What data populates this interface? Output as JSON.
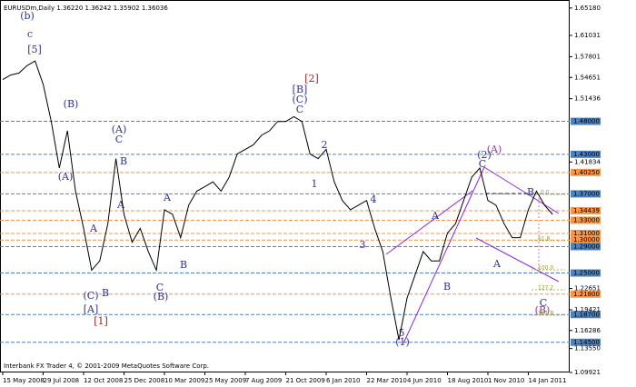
{
  "chart_data": {
    "type": "line",
    "title": "EURUSDm,Daily 1.36220 1.36242 1.35902 1.36036",
    "footer": "Interbank FX Trader 4, © 2001-2009 MetaQuotes Software Corp.",
    "categories": [
      "15 May 2008",
      null,
      null,
      null,
      null,
      "29 Jul 2008",
      null,
      null,
      null,
      null,
      "12 Oct 2008",
      null,
      null,
      null,
      null,
      "25 Dec 2008",
      null,
      null,
      null,
      null,
      "10 Mar 2009",
      null,
      null,
      null,
      null,
      "25 May 2009",
      null,
      null,
      null,
      null,
      "7 Aug 2009",
      null,
      null,
      null,
      null,
      "21 Oct 2009",
      null,
      null,
      null,
      null,
      "6 Jan 2010",
      null,
      null,
      null,
      null,
      "22 Mar 2010",
      null,
      null,
      null,
      null,
      "4 Jun 2010",
      null,
      null,
      null,
      null,
      "18 Aug 2010",
      null,
      null,
      null,
      null,
      "1 Nov 2010",
      null,
      null,
      null,
      null,
      "14 Jan 2011",
      null,
      null,
      null
    ],
    "values": [
      1.5433,
      1.5503,
      1.5531,
      1.5644,
      1.5715,
      1.5362,
      1.4798,
      1.4093,
      1.4657,
      1.3741,
      1.3177,
      1.2543,
      1.2684,
      1.3248,
      1.4234,
      1.3389,
      1.2966,
      1.3177,
      1.2825,
      1.2543,
      1.3459,
      1.3389,
      1.3036,
      1.353,
      1.3741,
      1.3811,
      1.3882,
      1.3741,
      1.3952,
      1.4305,
      1.4375,
      1.4446,
      1.4587,
      1.4657,
      1.4798,
      1.4798,
      1.4869,
      1.4798,
      1.4305,
      1.4234,
      1.4375,
      1.3882,
      1.36,
      1.3459,
      1.353,
      1.36,
      1.3177,
      1.2825,
      1.212,
      1.1486,
      1.212,
      1.2472,
      1.2825,
      1.2684,
      1.2684,
      1.3107,
      1.3248,
      1.36,
      1.3952,
      1.4093,
      1.36,
      1.353,
      1.3248,
      1.3036,
      1.3036,
      1.3459,
      1.3741,
      1.353,
      1.3389
    ],
    "color": "#000000",
    "ylim": [
      1.0992,
      1.6626
    ],
    "yticks": [
      {
        "value": 1.6518,
        "label": "1.65180"
      },
      {
        "value": 1.61031,
        "label": "1.61031"
      },
      {
        "value": 1.57801,
        "label": "1.57801"
      },
      {
        "value": 1.54651,
        "label": "1.54651"
      },
      {
        "value": 1.51436,
        "label": "1.51436"
      },
      {
        "value": 1.41834,
        "label": "1.41834"
      },
      {
        "value": 1.22651,
        "label": "1.22651"
      },
      {
        "value": 1.19421,
        "label": "1.19421"
      },
      {
        "value": 1.16286,
        "label": "1.16286"
      },
      {
        "value": 1.1355,
        "label": "1.13550"
      },
      {
        "value": 1.09921,
        "label": "1.09921"
      }
    ],
    "levels": [
      {
        "value": 1.48,
        "label": "1.48000",
        "color": "#4f81bd"
      },
      {
        "value": 1.43,
        "label": "1.43000",
        "color": "#4f81bd"
      },
      {
        "value": 1.4025,
        "label": "1.40250",
        "color": "#f79646"
      },
      {
        "value": 1.37,
        "label": "1.37000",
        "color": "#4f81bd"
      },
      {
        "value": 1.34439,
        "label": "1.34439",
        "color": "#f79646"
      },
      {
        "value": 1.33,
        "label": "1.33000",
        "color": "#f79646"
      },
      {
        "value": 1.31,
        "label": "1.31000",
        "color": "#f79646"
      },
      {
        "value": 1.3,
        "label": "1.30000",
        "color": "#f79646"
      },
      {
        "value": 1.29,
        "label": "1.29000",
        "color": "#4f81bd"
      },
      {
        "value": 1.25,
        "label": "1.25000",
        "color": "#4f81bd"
      },
      {
        "value": 1.218,
        "label": "1.21800",
        "color": "#f79646"
      },
      {
        "value": 1.187,
        "label": "1.18700",
        "color": "#4f81bd"
      },
      {
        "value": 1.145,
        "label": "1.14500",
        "color": "#4f81bd"
      }
    ],
    "annotations": [
      "(b)",
      "c",
      "[5]",
      "(B)",
      "(A)",
      "A",
      "(C)",
      "B",
      "[A]",
      "[1]",
      "(A)",
      "C",
      "B",
      "A",
      "A",
      "B",
      "C",
      "(B)",
      "[2]",
      "[B]",
      "(C)",
      "C",
      "2",
      "1",
      "3",
      "4",
      "A",
      "B",
      "5",
      "(1)",
      "(2)",
      "C",
      "(A)",
      "B",
      "A",
      "C",
      "(B)",
      "0.0",
      "61.8",
      "100.0",
      "127.2",
      "161.8"
    ]
  }
}
